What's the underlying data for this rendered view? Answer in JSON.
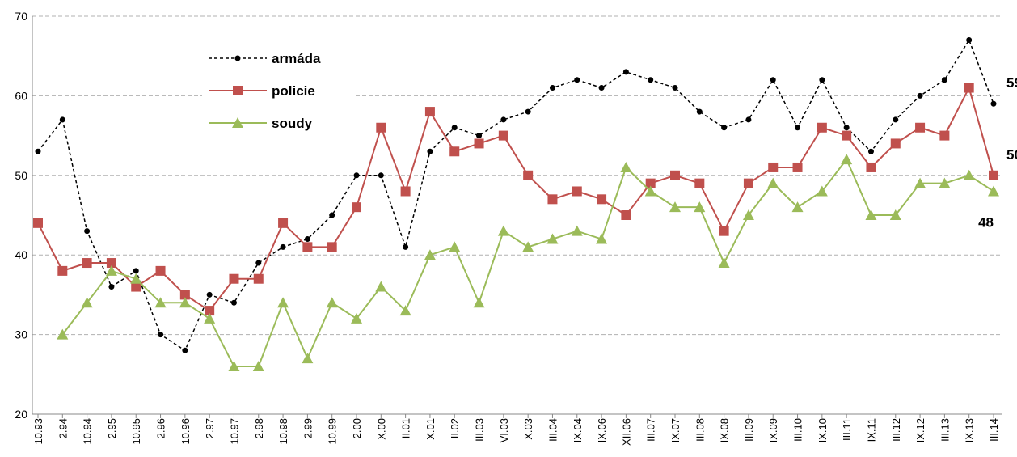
{
  "chart_data": {
    "type": "line",
    "categories": [
      "10.93",
      "2.94",
      "10.94",
      "2.95",
      "10.95",
      "2.96",
      "10.96",
      "2.97",
      "10.97",
      "2.98",
      "10.98",
      "2.99",
      "10.99",
      "2.00",
      "X.00",
      "II.01",
      "X.01",
      "II.02",
      "III.03",
      "VI.03",
      "X.03",
      "III.04",
      "IX.04",
      "IX.06",
      "XII.06",
      "III.07",
      "IX.07",
      "III.08",
      "IX.08",
      "III.09",
      "IX.09",
      "III.10",
      "IX.10",
      "III.11",
      "IX.11",
      "III.12",
      "IX.12",
      "III.13",
      "IX.13",
      "III.14"
    ],
    "series": [
      {
        "name": "armáda",
        "color": "#000000",
        "values": [
          53,
          57,
          43,
          36,
          38,
          30,
          28,
          35,
          34,
          39,
          41,
          42,
          45,
          50,
          50,
          41,
          53,
          56,
          55,
          57,
          58,
          61,
          62,
          61,
          63,
          62,
          61,
          58,
          56,
          57,
          62,
          56,
          62,
          56,
          53,
          57,
          60,
          62,
          67,
          59
        ]
      },
      {
        "name": "policie",
        "color": "#c0504d",
        "values": [
          44,
          38,
          39,
          39,
          36,
          38,
          35,
          33,
          37,
          37,
          44,
          41,
          41,
          46,
          56,
          48,
          58,
          53,
          54,
          55,
          50,
          47,
          48,
          47,
          45,
          49,
          50,
          49,
          43,
          49,
          51,
          51,
          56,
          55,
          51,
          54,
          56,
          55,
          61,
          50
        ]
      },
      {
        "name": "soudy",
        "color": "#9bbb59",
        "values": [
          null,
          30,
          34,
          38,
          37,
          34,
          34,
          32,
          26,
          26,
          34,
          27,
          34,
          32,
          36,
          33,
          40,
          41,
          34,
          43,
          41,
          42,
          43,
          42,
          51,
          48,
          46,
          46,
          39,
          45,
          49,
          46,
          48,
          52,
          45,
          45,
          49,
          49,
          50,
          48
        ]
      }
    ],
    "ylim": [
      20,
      70
    ],
    "yticks": [
      20,
      30,
      40,
      50,
      60,
      70
    ],
    "grid": true
  }
}
